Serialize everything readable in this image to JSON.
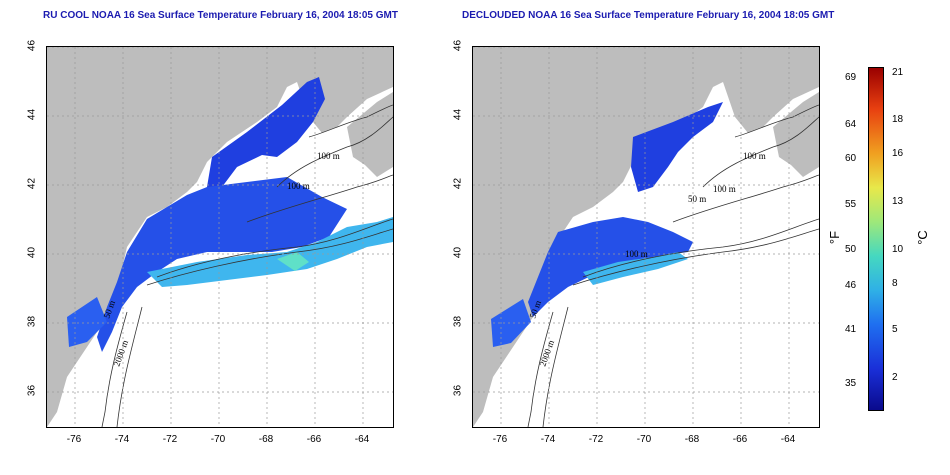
{
  "titles": {
    "left": "RU COOL NOAA 16 Sea Surface Temperature February 16, 2004 18:05 GMT",
    "right": "DECLOUDED NOAA 16 Sea Surface Temperature February 16, 2004 18:05 GMT"
  },
  "x_ticks": [
    "-76",
    "-74",
    "-72",
    "-70",
    "-68",
    "-66",
    "-64"
  ],
  "y_ticks": [
    "46",
    "44",
    "42",
    "40",
    "38",
    "36"
  ],
  "contour_labels": {
    "left": [
      "100 m",
      "100 m",
      "50 m",
      "2000 m"
    ],
    "right": [
      "100 m",
      "50 m",
      "100 m",
      "100 m",
      "50 m",
      "2000 m"
    ]
  },
  "colorbar": {
    "fahrenheit": [
      "69",
      "64",
      "60",
      "55",
      "50",
      "46",
      "41",
      "35"
    ],
    "celsius": [
      "21",
      "18",
      "16",
      "13",
      "10",
      "8",
      "5",
      "2"
    ],
    "f_unit": "°F",
    "c_unit": "°C"
  },
  "colors": {
    "land": "#bdbdbd",
    "cold_water": "#1f3fe0",
    "mid_water": "#2f9ff0",
    "warm_water": "#40d8c0",
    "grid": "#9a9a9a",
    "title": "#1b1bb0"
  }
}
